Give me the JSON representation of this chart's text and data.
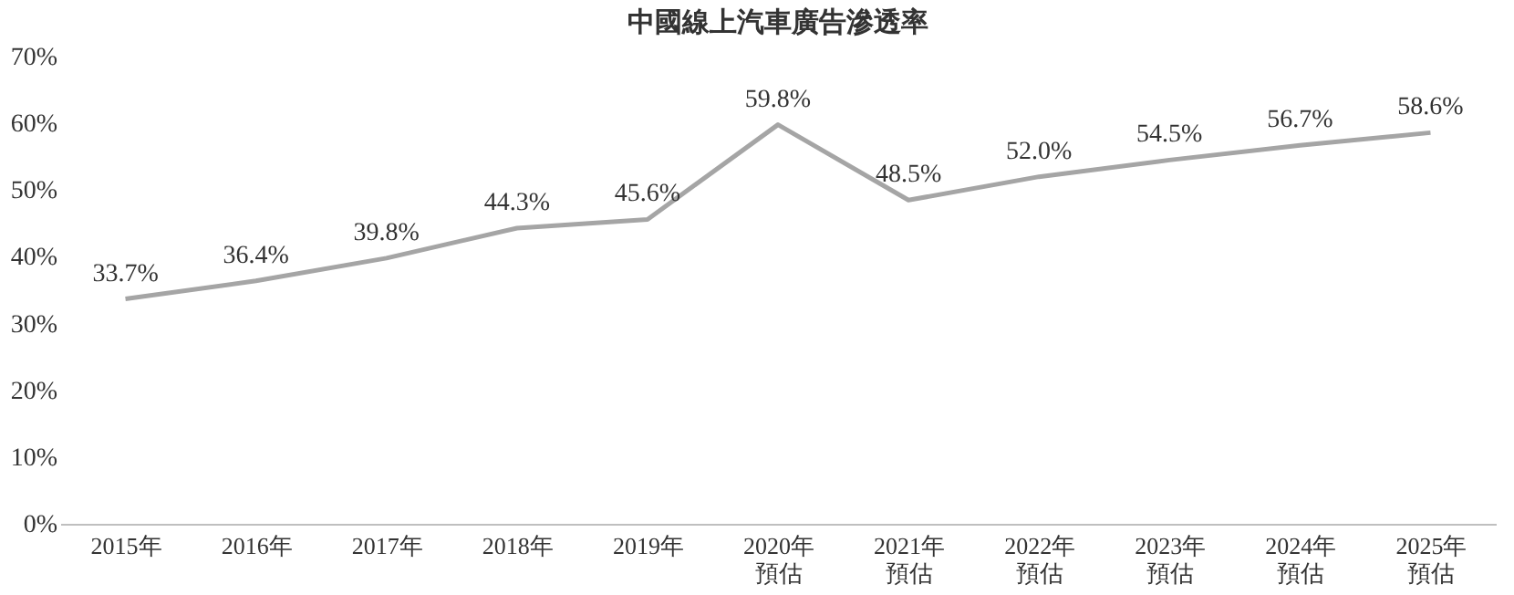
{
  "chart_data": {
    "type": "line",
    "title": "中國線上汽車廣告滲透率",
    "categories": [
      "2015年",
      "2016年",
      "2017年",
      "2018年",
      "2019年",
      "2020年預估",
      "2021年預估",
      "2022年預估",
      "2023年預估",
      "2024年預估",
      "2025年預估"
    ],
    "values": [
      33.7,
      36.4,
      39.8,
      44.3,
      45.6,
      59.8,
      48.5,
      52.0,
      54.5,
      56.7,
      58.6
    ],
    "value_labels": [
      "33.7%",
      "36.4%",
      "39.8%",
      "44.3%",
      "45.6%",
      "59.8%",
      "48.5%",
      "52.0%",
      "54.5%",
      "56.7%",
      "58.6%"
    ],
    "color": "#a5a5a5",
    "marker": "none",
    "line_style": "solid",
    "grid": false,
    "ylim": [
      0,
      70
    ],
    "yticks": [
      {
        "value": 0,
        "label": "0%"
      },
      {
        "value": 10,
        "label": "10%"
      },
      {
        "value": 20,
        "label": "20%"
      },
      {
        "value": 30,
        "label": "30%"
      },
      {
        "value": 40,
        "label": "40%"
      },
      {
        "value": 50,
        "label": "50%"
      },
      {
        "value": 60,
        "label": "60%"
      },
      {
        "value": 70,
        "label": "70%"
      }
    ]
  }
}
